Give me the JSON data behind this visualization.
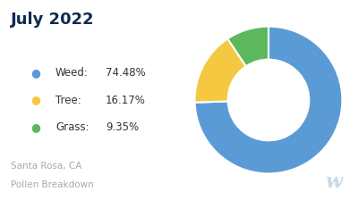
{
  "title": "July 2022",
  "subtitle_line1": "Santa Rosa, CA",
  "subtitle_line2": "Pollen Breakdown",
  "categories": [
    "Weed",
    "Tree",
    "Grass"
  ],
  "values": [
    74.48,
    16.17,
    9.35
  ],
  "colors": [
    "#5B9BD5",
    "#F5C842",
    "#5CB85C"
  ],
  "labels": [
    "74.48%",
    "16.17%",
    "9.35%"
  ],
  "background_color": "#ffffff",
  "title_color": "#0d2b4e",
  "legend_label_color": "#333333",
  "subtitle_color": "#aaaaaa",
  "watermark_color": "#c8d8ee",
  "donut_width": 0.45
}
